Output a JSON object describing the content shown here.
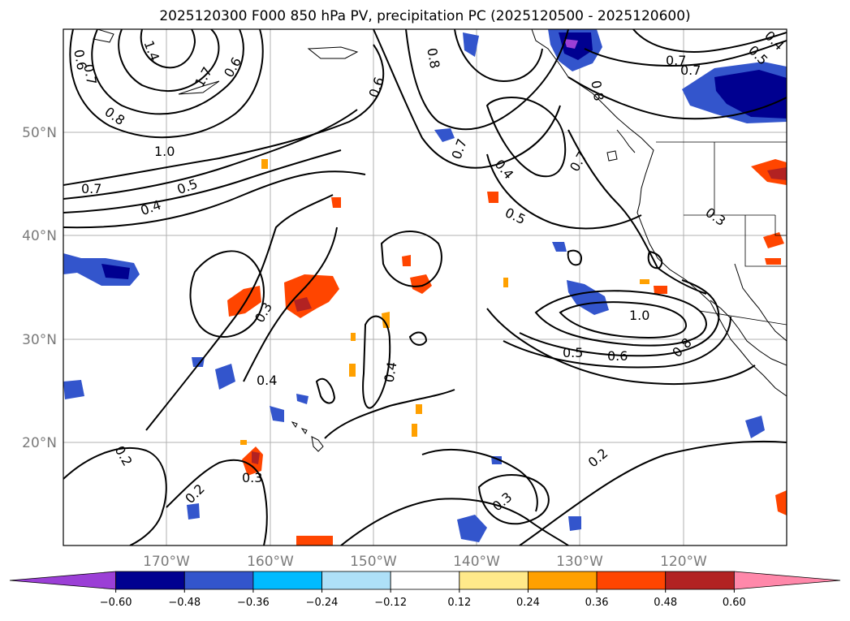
{
  "title": "2025120300 F000 850 hPa PV, precipitation PC (2025120500 - 2025120600)",
  "lat_labels": [
    "50°N",
    "40°N",
    "30°N",
    "20°N"
  ],
  "lon_labels": [
    "170°W",
    "160°W",
    "150°W",
    "140°W",
    "130°W",
    "120°W"
  ],
  "contour_labels": [
    "0.6",
    "0.7",
    "1.4",
    "1.7",
    "0.6",
    "0.8",
    "0.6",
    "0.8",
    "0.7",
    "0.5",
    "0.4",
    "0.8",
    "1.0",
    "0.7",
    "0.5",
    "0.4",
    "0.7",
    "0.4",
    "0.5",
    "0.7",
    "0.3",
    "0.3",
    "0.4",
    "0.4",
    "0.7",
    "1.0",
    "0.5",
    "0.6",
    "0.8",
    "0.2",
    "0.2",
    "0.3",
    "0.3",
    "0.2"
  ],
  "colorbar": {
    "ticks": [
      "−0.60",
      "−0.48",
      "−0.36",
      "−0.24",
      "−0.12",
      "0.12",
      "0.24",
      "0.36",
      "0.48",
      "0.60"
    ],
    "colors": [
      "#9b3fd6",
      "#000090",
      "#3355cc",
      "#00bbff",
      "#aee0f8",
      "#ffffff",
      "#ffe98a",
      "#ffa000",
      "#ff4500",
      "#b22222",
      "#ff88aa"
    ]
  }
}
